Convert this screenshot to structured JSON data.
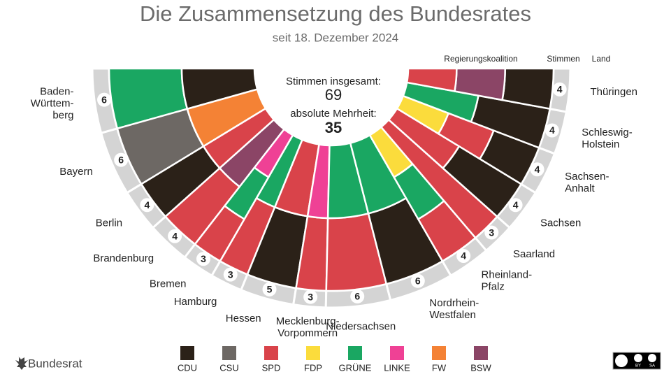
{
  "chart_data": {
    "type": "half-donut",
    "title": "Die Zusammensetzung des Bundesrates",
    "subtitle": "seit 18. Dezember 2024",
    "total_label": "Stimmen insgesamt:",
    "total_votes": 69,
    "majority_label": "absolute Mehrheit:",
    "majority_votes": 35,
    "header": {
      "coalition": "Regierungskoalition",
      "votes": "Stimmen",
      "state": "Land"
    },
    "parties": [
      {
        "name": "CDU",
        "color": "#2b2118"
      },
      {
        "name": "CSU",
        "color": "#6d6864"
      },
      {
        "name": "SPD",
        "color": "#d9434a"
      },
      {
        "name": "FDP",
        "color": "#fbdc3c"
      },
      {
        "name": "GRÜNE",
        "color": "#1aa762"
      },
      {
        "name": "LINKE",
        "color": "#ef4195"
      },
      {
        "name": "FW",
        "color": "#f48235"
      },
      {
        "name": "BSW",
        "color": "#8b4566"
      }
    ],
    "states": [
      {
        "name_lines": [
          "Baden-",
          "Württem-",
          "berg"
        ],
        "votes": 6,
        "coalition": [
          "GRÜNE",
          "CDU"
        ]
      },
      {
        "name_lines": [
          "Bayern"
        ],
        "votes": 6,
        "coalition": [
          "CSU",
          "FW"
        ]
      },
      {
        "name_lines": [
          "Berlin"
        ],
        "votes": 4,
        "coalition": [
          "CDU",
          "SPD"
        ]
      },
      {
        "name_lines": [
          "Brandenburg"
        ],
        "votes": 4,
        "coalition": [
          "SPD",
          "BSW"
        ]
      },
      {
        "name_lines": [
          "Bremen"
        ],
        "votes": 3,
        "coalition": [
          "SPD",
          "GRÜNE",
          "LINKE"
        ]
      },
      {
        "name_lines": [
          "Hamburg"
        ],
        "votes": 3,
        "coalition": [
          "SPD",
          "GRÜNE"
        ]
      },
      {
        "name_lines": [
          "Hessen"
        ],
        "votes": 5,
        "coalition": [
          "CDU",
          "SPD"
        ]
      },
      {
        "name_lines": [
          "Mecklenburg-",
          "Vorpommern"
        ],
        "votes": 3,
        "coalition": [
          "SPD",
          "LINKE"
        ]
      },
      {
        "name_lines": [
          "Niedersachsen"
        ],
        "votes": 6,
        "coalition": [
          "SPD",
          "GRÜNE"
        ]
      },
      {
        "name_lines": [
          "Nordrhein-",
          "Westfalen"
        ],
        "votes": 6,
        "coalition": [
          "CDU",
          "GRÜNE"
        ]
      },
      {
        "name_lines": [
          "Rheinland-",
          "Pfalz"
        ],
        "votes": 4,
        "coalition": [
          "SPD",
          "GRÜNE",
          "FDP"
        ]
      },
      {
        "name_lines": [
          "Saarland"
        ],
        "votes": 3,
        "coalition": [
          "SPD"
        ]
      },
      {
        "name_lines": [
          "Sachsen"
        ],
        "votes": 4,
        "coalition": [
          "CDU",
          "SPD"
        ]
      },
      {
        "name_lines": [
          "Sachsen-",
          "Anhalt"
        ],
        "votes": 4,
        "coalition": [
          "CDU",
          "SPD",
          "FDP"
        ]
      },
      {
        "name_lines": [
          "Schleswig-",
          "Holstein"
        ],
        "votes": 4,
        "coalition": [
          "CDU",
          "GRÜNE"
        ]
      },
      {
        "name_lines": [
          "Thüringen"
        ],
        "votes": 4,
        "coalition": [
          "CDU",
          "BSW",
          "SPD"
        ]
      }
    ]
  },
  "footer": {
    "logo": "Bundesrat",
    "license": [
      "BY",
      "SA"
    ]
  }
}
